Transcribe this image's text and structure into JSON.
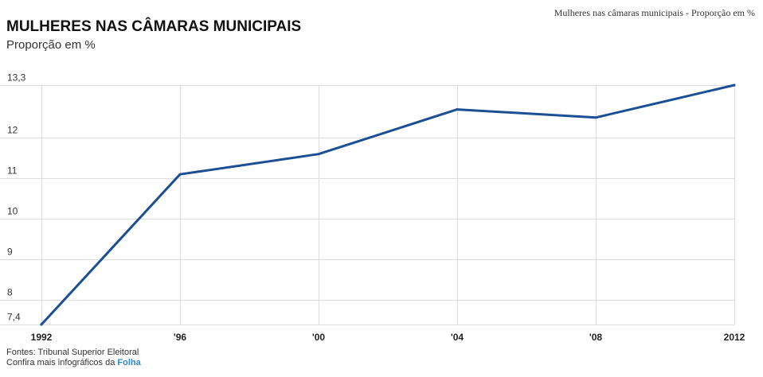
{
  "header": {
    "page_caption": "Mulheres nas câmaras municipais - Proporção em %"
  },
  "chart_data": {
    "type": "line",
    "title": "MULHERES NAS CÂMARAS MUNICIPAIS",
    "subtitle": "Proporção em %",
    "categories": [
      "1992",
      "'96",
      "'00",
      "'04",
      "'08",
      "2012"
    ],
    "series": [
      {
        "values": [
          7.4,
          11.1,
          11.6,
          12.7,
          12.5,
          13.3
        ],
        "color": "#1b4f93"
      }
    ],
    "y_ticks": [
      {
        "value": 7.4,
        "label": "7,4"
      },
      {
        "value": 8,
        "label": "8"
      },
      {
        "value": 9,
        "label": "9"
      },
      {
        "value": 10,
        "label": "10"
      },
      {
        "value": 11,
        "label": "11"
      },
      {
        "value": 12,
        "label": "12"
      },
      {
        "value": 13.3,
        "label": "13,3"
      }
    ],
    "ylim": [
      7.4,
      13.3
    ],
    "grid": true,
    "grid_color": "#dddddd"
  },
  "footer": {
    "source": "Fontes: Tribunal Superior Eleitoral",
    "more_prefix": "Confira mais infográficos da",
    "brand": "Folha",
    "brand_color": "#2a8bc2"
  }
}
